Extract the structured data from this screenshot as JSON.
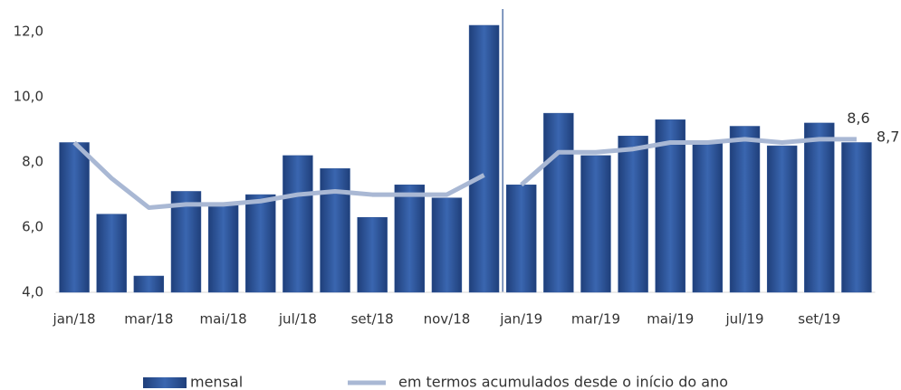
{
  "chart_data": {
    "type": "bar",
    "categories": [
      "jan/18",
      null,
      "mar/18",
      null,
      "mai/18",
      null,
      "jul/18",
      null,
      "set/18",
      null,
      "nov/18",
      null,
      "jan/19",
      null,
      "mar/19",
      null,
      "mai/19",
      null,
      "jul/19",
      null,
      "set/19",
      null
    ],
    "series": [
      {
        "name": "mensal",
        "type": "bar",
        "color": "#2f5597",
        "values": [
          8.6,
          6.4,
          4.5,
          7.1,
          6.7,
          7.0,
          8.2,
          7.8,
          6.3,
          7.3,
          6.9,
          12.2,
          7.3,
          9.5,
          8.2,
          8.8,
          9.3,
          8.6,
          9.1,
          8.5,
          9.2,
          8.6
        ],
        "value_labels": [
          null,
          null,
          null,
          null,
          null,
          null,
          null,
          null,
          null,
          null,
          null,
          null,
          null,
          null,
          null,
          null,
          null,
          null,
          null,
          null,
          null,
          "8,6"
        ]
      },
      {
        "name": "em termos acumulados desde o início do ano",
        "type": "line",
        "color": "#a9b8d4",
        "values": [
          8.6,
          7.5,
          6.6,
          6.7,
          6.7,
          6.8,
          7.0,
          7.1,
          7.0,
          7.0,
          7.0,
          7.6,
          7.3,
          8.3,
          8.3,
          8.4,
          8.6,
          8.6,
          8.7,
          8.6,
          8.7,
          8.7
        ],
        "value_labels": [
          null,
          null,
          null,
          null,
          null,
          null,
          null,
          null,
          null,
          null,
          null,
          null,
          null,
          null,
          null,
          null,
          null,
          null,
          null,
          null,
          null,
          "8,7"
        ]
      }
    ],
    "divider_after": 11,
    "ylim": [
      4,
      12.7
    ],
    "yticks": [
      {
        "value": 4,
        "label": "4,0"
      },
      {
        "value": 6,
        "label": "6,0"
      },
      {
        "value": 8,
        "label": "8,0"
      },
      {
        "value": 10,
        "label": "10,0"
      },
      {
        "value": 12,
        "label": "12,0"
      }
    ],
    "legend": "bottom"
  }
}
